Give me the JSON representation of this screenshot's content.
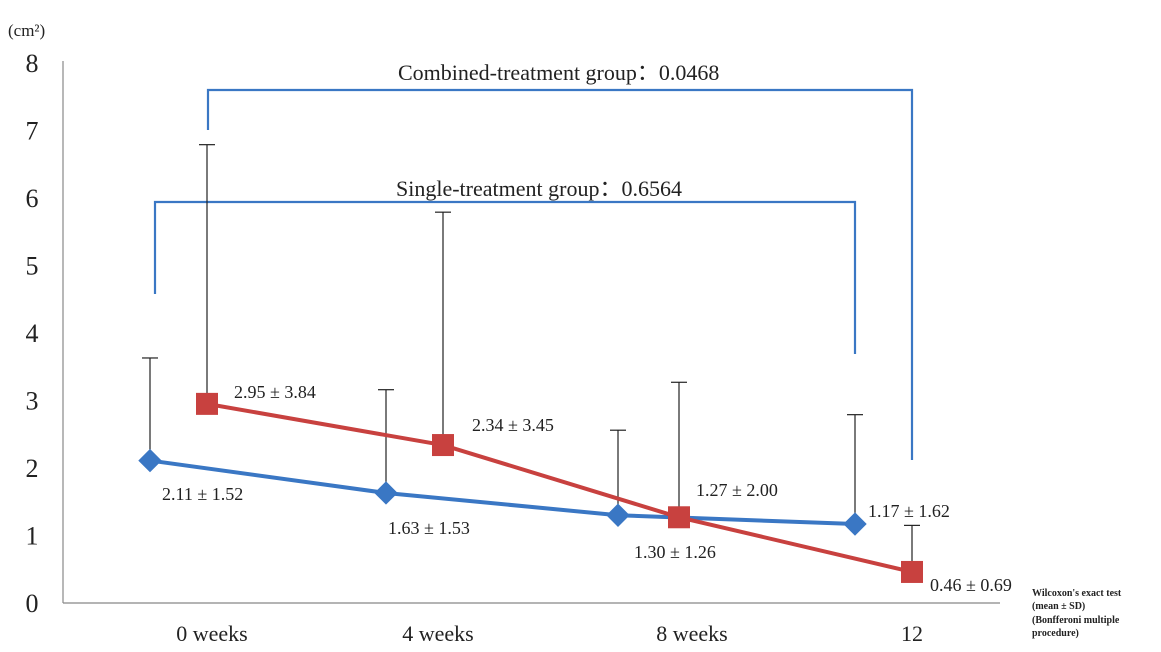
{
  "chart_data": {
    "type": "line",
    "unit_label": "(cm²)",
    "categories": [
      "0 weeks",
      "4 weeks",
      "8 weeks",
      "12"
    ],
    "ylim": [
      0,
      8
    ],
    "yticks": [
      "0",
      "1",
      "2",
      "3",
      "4",
      "5",
      "6",
      "7",
      "8"
    ],
    "grid": false,
    "legend": "none",
    "series": [
      {
        "key": "single",
        "color": "#3a77c4",
        "marker": "diamond",
        "values": [
          2.11,
          1.63,
          1.3,
          1.17
        ],
        "sd": [
          1.52,
          1.53,
          1.26,
          1.62
        ],
        "labels": [
          "2.11 ± 1.52",
          "1.63 ± 1.53",
          "1.30 ± 1.26",
          "1.17 ± 1.62"
        ]
      },
      {
        "key": "combined",
        "color": "#c8413f",
        "marker": "square",
        "values": [
          2.95,
          2.34,
          1.27,
          0.46
        ],
        "sd": [
          3.84,
          3.45,
          2.0,
          0.69
        ],
        "labels": [
          "2.95 ±  3.84",
          "2.34 ± 3.45",
          "1.27 ± 2.00",
          "0.46 ± 0.69"
        ]
      }
    ],
    "brackets": [
      {
        "label": "Combined-treatment group：0.0468",
        "color": "#3a77c4"
      },
      {
        "label": "Single-treatment group：0.6564",
        "color": "#3a77c4"
      }
    ],
    "notes": [
      "Wilcoxon's exact test",
      "(mean ± SD)",
      "(Bonfferoni multiple",
      "procedure)"
    ]
  }
}
